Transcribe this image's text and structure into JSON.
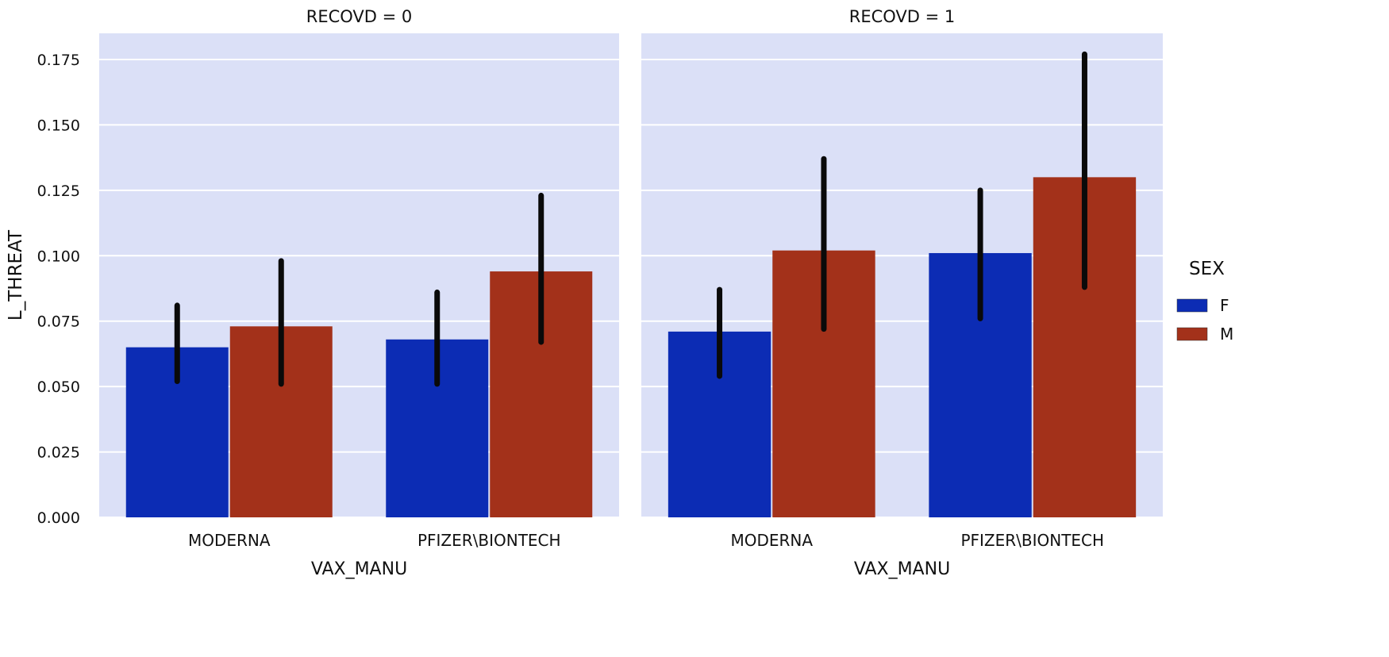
{
  "chart_data": {
    "type": "bar",
    "ylabel": "L_THREAT",
    "xlabel": "VAX_MANU",
    "ylim": [
      0,
      0.185
    ],
    "yticks": [
      0.0,
      0.025,
      0.05,
      0.075,
      0.1,
      0.125,
      0.15,
      0.175
    ],
    "ytick_labels": [
      "0.000",
      "0.025",
      "0.050",
      "0.075",
      "0.100",
      "0.125",
      "0.150",
      "0.175"
    ],
    "grid": true,
    "categories": [
      "MODERNA",
      "PFIZER\\BIONTECH"
    ],
    "legend": {
      "title": "SEX",
      "placement": "right",
      "entries": [
        {
          "label": "F",
          "color": "#0c2cb4"
        },
        {
          "label": "M",
          "color": "#a3311a"
        }
      ]
    },
    "panels": [
      {
        "title": "RECOVD = 0",
        "series": [
          {
            "name": "F",
            "values": [
              0.065,
              0.068
            ],
            "ci_low": [
              0.052,
              0.051
            ],
            "ci_high": [
              0.081,
              0.086
            ]
          },
          {
            "name": "M",
            "values": [
              0.073,
              0.094
            ],
            "ci_low": [
              0.051,
              0.067
            ],
            "ci_high": [
              0.098,
              0.123
            ]
          }
        ]
      },
      {
        "title": "RECOVD = 1",
        "series": [
          {
            "name": "F",
            "values": [
              0.071,
              0.101
            ],
            "ci_low": [
              0.054,
              0.076
            ],
            "ci_high": [
              0.087,
              0.125
            ]
          },
          {
            "name": "M",
            "values": [
              0.102,
              0.13
            ],
            "ci_low": [
              0.072,
              0.088
            ],
            "ci_high": [
              0.137,
              0.177
            ]
          }
        ]
      }
    ],
    "colors": {
      "panel_bg": "#dbe0f7",
      "grid": "#ffffff",
      "F": "#0c2cb4",
      "M": "#a3311a",
      "error_bar": "#0a0a0a"
    }
  }
}
